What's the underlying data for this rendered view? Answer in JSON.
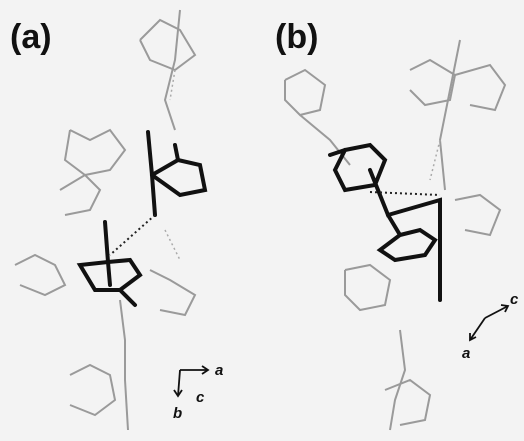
{
  "panels": [
    {
      "label": "(a)",
      "axes": [
        "a",
        "c",
        "b"
      ]
    },
    {
      "label": "(b)",
      "axes": [
        "c",
        "a"
      ]
    }
  ]
}
